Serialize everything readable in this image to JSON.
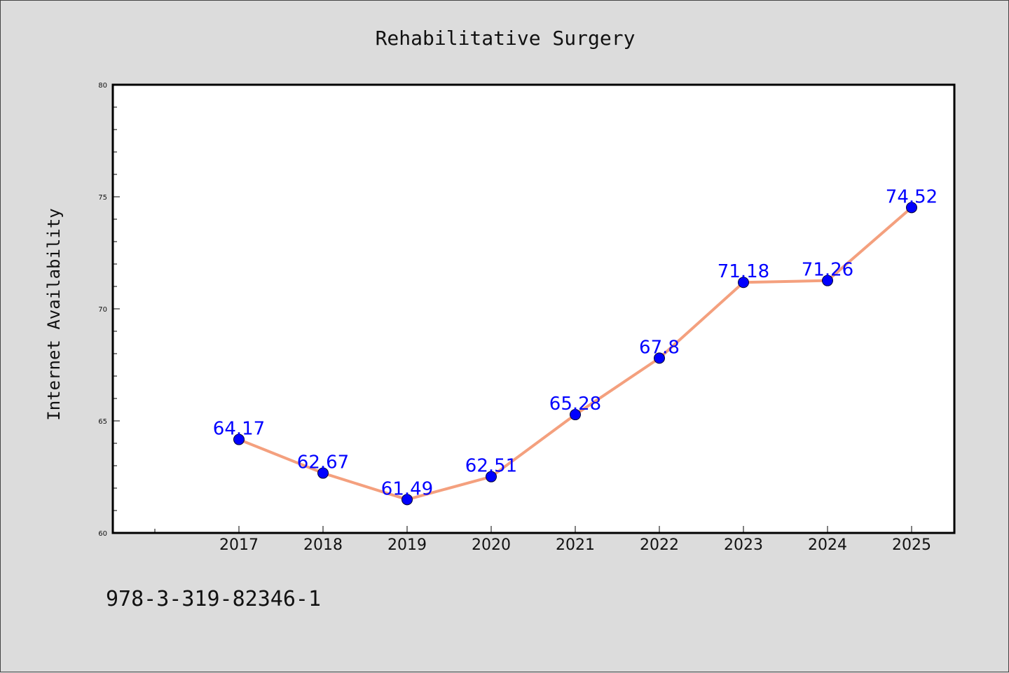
{
  "chart_data": {
    "type": "line",
    "title": "Rehabilitative Surgery",
    "xlabel": "",
    "ylabel": "Internet Availability",
    "categories": [
      "2017",
      "2018",
      "2019",
      "2020",
      "2021",
      "2022",
      "2023",
      "2024",
      "2025"
    ],
    "series": [
      {
        "values": [
          64.17,
          62.67,
          61.49,
          62.51,
          65.28,
          67.8,
          71.18,
          71.26,
          74.52
        ],
        "labels": [
          "64.17",
          "62.67",
          "61.49",
          "62.51",
          "65.28",
          "67.8",
          "71.18",
          "71.26",
          "74.52"
        ],
        "line_color": "#f4a07e",
        "marker_color": "#0000ff"
      }
    ],
    "ylim": [
      60,
      80
    ],
    "yticks": [
      "60",
      "65",
      "70",
      "75",
      "80"
    ],
    "grid": false,
    "legend": "none"
  },
  "footnote": "978-3-319-82346-1"
}
